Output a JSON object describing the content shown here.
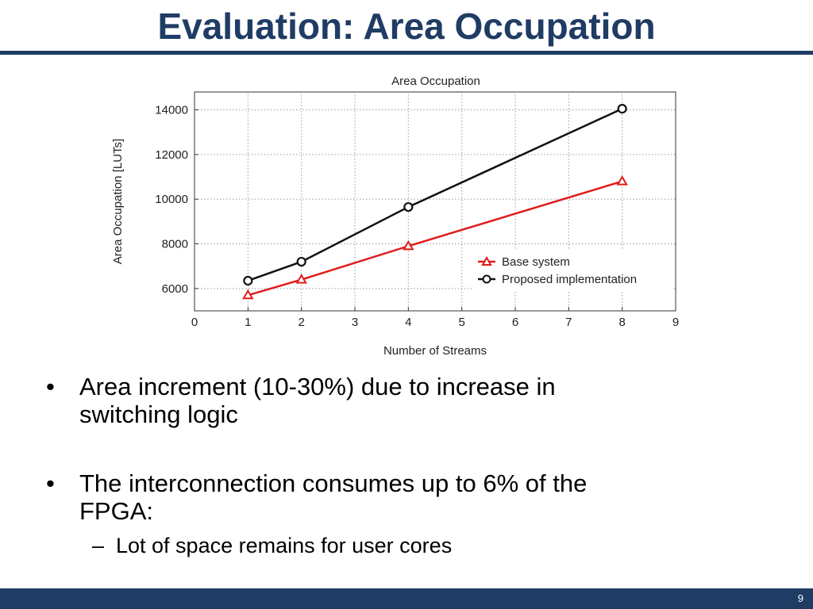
{
  "slide": {
    "title": "Evaluation: Area Occupation",
    "page_number": "9"
  },
  "bullets": [
    {
      "marker": "•",
      "text_line1": "Area increment (10-30%) due to increase in",
      "text_line2": "switching logic"
    },
    {
      "marker": "•",
      "text_line1": "The interconnection consumes up to 6% of the",
      "text_line2": "FPGA:"
    }
  ],
  "sub_bullets": [
    {
      "marker": "–",
      "text": "Lot of space remains for user cores"
    }
  ],
  "colors": {
    "title": "#1f3c64",
    "rule": "#1f3c64",
    "base_series": "#e01b1b",
    "proposed_series": "#111111"
  },
  "chart_data": {
    "type": "line",
    "title": "Area Occupation",
    "xlabel": "Number of Streams",
    "ylabel": "Area Occupation [LUTs]",
    "xlim": [
      0,
      9
    ],
    "ylim": [
      5000,
      14800
    ],
    "xticks": [
      0,
      1,
      2,
      3,
      4,
      5,
      6,
      7,
      8,
      9
    ],
    "yticks": [
      6000,
      8000,
      10000,
      12000,
      14000
    ],
    "grid": true,
    "legend_position": "lower-right",
    "series": [
      {
        "name": "Base system",
        "marker": "triangle",
        "color": "#e01b1b",
        "x": [
          1,
          2,
          4,
          8
        ],
        "y": [
          5700,
          6400,
          7900,
          10800
        ]
      },
      {
        "name": "Proposed implementation",
        "marker": "circle",
        "color": "#111111",
        "x": [
          1,
          2,
          4,
          8
        ],
        "y": [
          6350,
          7200,
          9650,
          14050
        ]
      }
    ]
  }
}
